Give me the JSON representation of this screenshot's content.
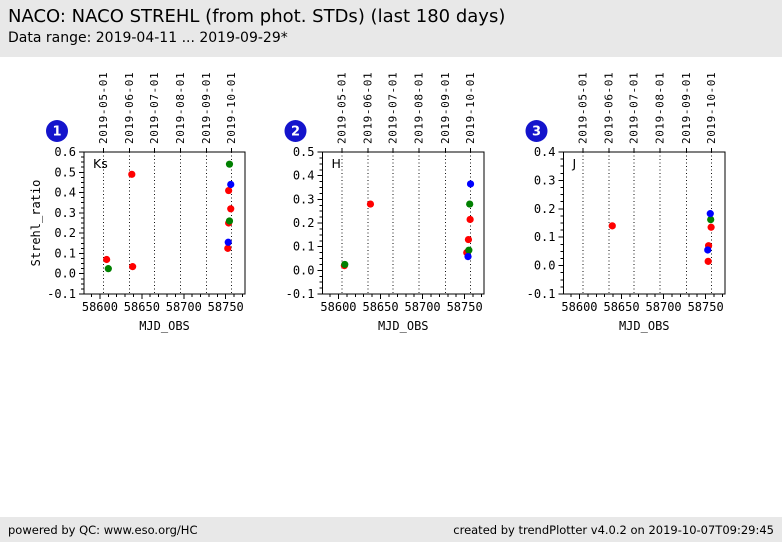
{
  "header": {
    "title": "NACO: NACO STREHL (from phot. STDs) (last 180 days)",
    "subtitle": "Data range: 2019-04-11 ... 2019-09-29*"
  },
  "footer": {
    "left": "powered by QC: www.eso.org/HC",
    "right": "created by trendPlotter v4.0.2 on 2019-10-07T09:29:45"
  },
  "colors": {
    "panel_bg": "#e8e8e8",
    "badge": "#1414cc",
    "red": "#ff0000",
    "green": "#008000",
    "blue": "#0000ff"
  },
  "chart_data": [
    {
      "type": "scatter",
      "number": "1",
      "band": "Ks",
      "xlabel": "MJD_OBS",
      "ylabel": "Strehl_ratio",
      "xlim": [
        58581,
        58773
      ],
      "ylim": [
        -0.1,
        0.6
      ],
      "xticks": [
        58600,
        58650,
        58700,
        58750
      ],
      "yticks": [
        -0.1,
        0.0,
        0.1,
        0.2,
        0.3,
        0.4,
        0.5,
        0.6
      ],
      "x_minor_step": 10,
      "y_minor_step": 0.025,
      "grid": "dotted-vertical-months",
      "month_ticks": [
        {
          "mjd": 58604,
          "label": "2019-05-01"
        },
        {
          "mjd": 58635,
          "label": "2019-06-01"
        },
        {
          "mjd": 58665,
          "label": "2019-07-01"
        },
        {
          "mjd": 58696,
          "label": "2019-08-01"
        },
        {
          "mjd": 58727,
          "label": "2019-09-01"
        },
        {
          "mjd": 58757,
          "label": "2019-10-01"
        }
      ],
      "points": [
        {
          "mjd": 58608,
          "strehl": 0.07,
          "c": "red"
        },
        {
          "mjd": 58638,
          "strehl": 0.49,
          "c": "red"
        },
        {
          "mjd": 58639,
          "strehl": 0.035,
          "c": "red"
        },
        {
          "mjd": 58753.5,
          "strehl": 0.41,
          "c": "red"
        },
        {
          "mjd": 58756,
          "strehl": 0.32,
          "c": "red"
        },
        {
          "mjd": 58753.5,
          "strehl": 0.25,
          "c": "red"
        },
        {
          "mjd": 58752.5,
          "strehl": 0.125,
          "c": "red"
        },
        {
          "mjd": 58610,
          "strehl": 0.025,
          "c": "green"
        },
        {
          "mjd": 58754.5,
          "strehl": 0.54,
          "c": "green"
        },
        {
          "mjd": 58754.5,
          "strehl": 0.26,
          "c": "green"
        },
        {
          "mjd": 58756,
          "strehl": 0.44,
          "c": "blue"
        },
        {
          "mjd": 58753,
          "strehl": 0.155,
          "c": "blue"
        }
      ]
    },
    {
      "type": "scatter",
      "number": "2",
      "band": "H",
      "xlabel": "MJD_OBS",
      "ylabel": "",
      "xlim": [
        58581,
        58773
      ],
      "ylim": [
        -0.1,
        0.5
      ],
      "xticks": [
        58600,
        58650,
        58700,
        58750
      ],
      "yticks": [
        -0.1,
        0.0,
        0.1,
        0.2,
        0.3,
        0.4,
        0.5
      ],
      "x_minor_step": 10,
      "y_minor_step": 0.025,
      "grid": "dotted-vertical-months",
      "month_ticks": [
        {
          "mjd": 58604,
          "label": "2019-05-01"
        },
        {
          "mjd": 58635,
          "label": "2019-06-01"
        },
        {
          "mjd": 58665,
          "label": "2019-07-01"
        },
        {
          "mjd": 58696,
          "label": "2019-08-01"
        },
        {
          "mjd": 58727,
          "label": "2019-09-01"
        },
        {
          "mjd": 58757,
          "label": "2019-10-01"
        }
      ],
      "points": [
        {
          "mjd": 58607,
          "strehl": 0.02,
          "c": "red"
        },
        {
          "mjd": 58638,
          "strehl": 0.28,
          "c": "red"
        },
        {
          "mjd": 58756.5,
          "strehl": 0.215,
          "c": "red"
        },
        {
          "mjd": 58754.5,
          "strehl": 0.13,
          "c": "red"
        },
        {
          "mjd": 58752.5,
          "strehl": 0.075,
          "c": "red"
        },
        {
          "mjd": 58607.5,
          "strehl": 0.025,
          "c": "green"
        },
        {
          "mjd": 58756,
          "strehl": 0.28,
          "c": "green"
        },
        {
          "mjd": 58755,
          "strehl": 0.085,
          "c": "green"
        },
        {
          "mjd": 58757,
          "strehl": 0.365,
          "c": "blue"
        },
        {
          "mjd": 58754,
          "strehl": 0.058,
          "c": "blue"
        }
      ]
    },
    {
      "type": "scatter",
      "number": "3",
      "band": "J",
      "xlabel": "MJD_OBS",
      "ylabel": "",
      "xlim": [
        58581,
        58773
      ],
      "ylim": [
        -0.1,
        0.4
      ],
      "xticks": [
        58600,
        58650,
        58700,
        58750
      ],
      "yticks": [
        -0.1,
        0.0,
        0.1,
        0.2,
        0.3,
        0.4
      ],
      "x_minor_step": 10,
      "y_minor_step": 0.025,
      "grid": "dotted-vertical-months",
      "month_ticks": [
        {
          "mjd": 58604,
          "label": "2019-05-01"
        },
        {
          "mjd": 58635,
          "label": "2019-06-01"
        },
        {
          "mjd": 58665,
          "label": "2019-07-01"
        },
        {
          "mjd": 58696,
          "label": "2019-08-01"
        },
        {
          "mjd": 58727,
          "label": "2019-09-01"
        },
        {
          "mjd": 58757,
          "label": "2019-10-01"
        }
      ],
      "points": [
        {
          "mjd": 58639,
          "strehl": 0.14,
          "c": "red"
        },
        {
          "mjd": 58756.5,
          "strehl": 0.135,
          "c": "red"
        },
        {
          "mjd": 58753.5,
          "strehl": 0.07,
          "c": "red"
        },
        {
          "mjd": 58753,
          "strehl": 0.015,
          "c": "red"
        },
        {
          "mjd": 58756,
          "strehl": 0.162,
          "c": "green"
        },
        {
          "mjd": 58755.5,
          "strehl": 0.183,
          "c": "blue"
        },
        {
          "mjd": 58752.5,
          "strehl": 0.055,
          "c": "blue"
        }
      ]
    }
  ]
}
